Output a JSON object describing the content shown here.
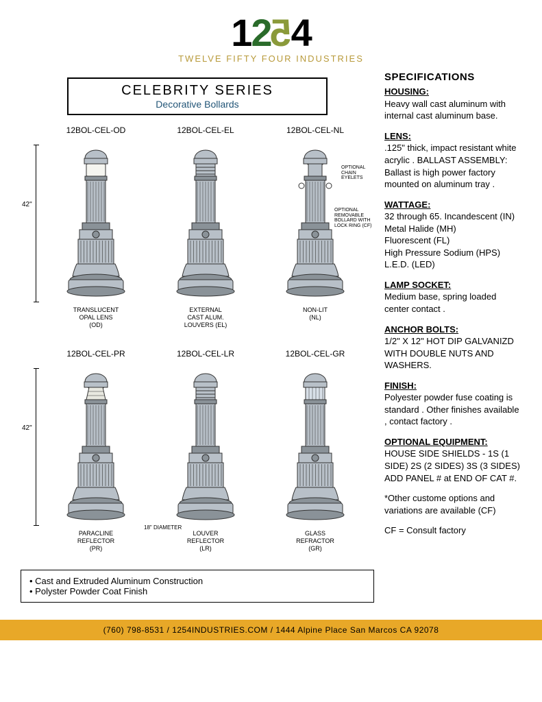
{
  "logo": {
    "digits": "1254",
    "subtitle": "TWELVE FIFTY FOUR INDUSTRIES"
  },
  "title": {
    "main": "CELEBRITY SERIES",
    "sub": "Decorative Bollards"
  },
  "height_label": "42\"",
  "diameter_label": "18\" DIAMETER",
  "opt1": "OPTIONAL CHAIN EYELETS",
  "opt2": "OPTIONAL REMOVABLE BOLLARD WITH LOCK RING (CF)",
  "products": [
    {
      "model": "12BOL-CEL-OD",
      "cap1": "TRANSLUCENT",
      "cap2": "OPAL LENS",
      "cap3": "(OD)",
      "lens": "opal"
    },
    {
      "model": "12BOL-CEL-EL",
      "cap1": "EXTERNAL",
      "cap2": "CAST ALUM.",
      "cap3": "LOUVERS   (EL)",
      "lens": "louver"
    },
    {
      "model": "12BOL-CEL-NL",
      "cap1": "NON-LIT",
      "cap2": "(NL)",
      "cap3": "",
      "lens": "none"
    },
    {
      "model": "12BOL-CEL-PR",
      "cap1": "PARACLINE",
      "cap2": "REFLECTOR",
      "cap3": "(PR)",
      "lens": "para"
    },
    {
      "model": "12BOL-CEL-LR",
      "cap1": "LOUVER",
      "cap2": "REFLECTOR",
      "cap3": "(LR)",
      "lens": "louver"
    },
    {
      "model": "12BOL-CEL-GR",
      "cap1": "GLASS",
      "cap2": "REFRACTOR",
      "cap3": "(GR)",
      "lens": "glass"
    }
  ],
  "features": [
    "Cast and Extruded Aluminum Construction",
    "Polyster Powder Coat Finish"
  ],
  "specs_title": "SPECIFICATIONS",
  "specs": [
    {
      "h": "HOUSING:",
      "b": "Heavy wall cast aluminum with internal cast aluminum base."
    },
    {
      "h": "LENS:",
      "b": ".125\" thick, impact resistant white acrylic . BALLAST ASSEMBLY: Ballast is high power factory mounted on aluminum tray ."
    },
    {
      "h": "WATTAGE:",
      "b": "32 through 65. Incandescent (IN)\nMetal Halide (MH)\nFluorescent (FL)\nHigh Pressure Sodium (HPS)\nL.E.D. (LED)"
    },
    {
      "h": "LAMP SOCKET:",
      "b": "Medium base, spring loaded center contact ."
    },
    {
      "h": "ANCHOR BOLTS:",
      "b": "1/2\" X 12\" HOT DIP GALVANIZD WITH DOUBLE NUTS AND WASHERS."
    },
    {
      "h": "FINISH:",
      "b": "Polyester powder fuse coating is standard . Other finishes available , contact factory ."
    },
    {
      "h": "OPTIONAL EQUIPMENT:",
      "b": "HOUSE SIDE SHIELDS - 1S (1 SIDE) 2S (2 SIDES) 3S (3 SIDES) ADD PANEL # at END OF CAT #."
    }
  ],
  "note1": "*Other custome options and variations are available (CF)",
  "note2": "CF = Consult factory",
  "footer": {
    "phone": "(760) 798-8531",
    "web": "1254INDUSTRIES.COM",
    "addr": "1444 Alpine Place San Marcos CA 92078",
    "sep": "   /   "
  },
  "colors": {
    "bollard_fill": "#b8c0c8",
    "bollard_stroke": "#333",
    "bollard_dark": "#8a9298"
  }
}
